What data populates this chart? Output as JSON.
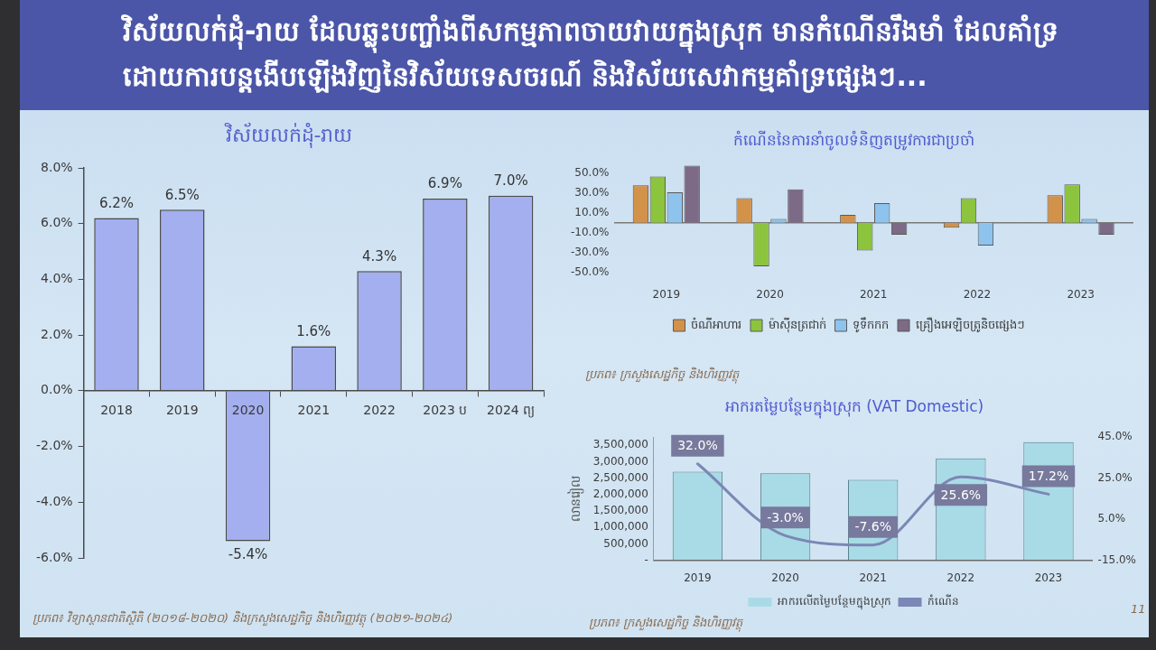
{
  "chart_data": [
    {
      "type": "other",
      "title": "វិស័យលក់ដុំ-រាយ ដែលឆ្លុះបញ្ចាំងពីសកម្មភាពចាយវាយក្នុងស្រុក មានកំណើនរឹងមាំ ដែលគាំទ្រដោយការបន្តងើបឡើងវិញនៃវិស័យទេសចរណ៍ និងវិស័យសេវាកម្មគាំទ្រផ្សេងៗ..."
    },
    {
      "type": "bar",
      "title": "វិស័យលក់ដុំ-រាយ",
      "categories": [
        "2018",
        "2019",
        "2020",
        "2021",
        "2022",
        "2023 ប",
        "2024 ព្យ"
      ],
      "values": [
        6.2,
        6.5,
        -5.4,
        1.6,
        4.3,
        6.9,
        7.0
      ],
      "value_labels": [
        "6.2%",
        "6.5%",
        "-5.4%",
        "1.6%",
        "4.3%",
        "6.9%",
        "7.0%"
      ],
      "color": "#a3afef",
      "ylim": [
        -6,
        8
      ],
      "yticks": [
        {
          "value": -6,
          "label": "-6.0%"
        },
        {
          "value": -4,
          "label": "-4.0%"
        },
        {
          "value": -2,
          "label": "-2.0%"
        },
        {
          "value": 0,
          "label": "0.0%"
        },
        {
          "value": 2,
          "label": "2.0%"
        },
        {
          "value": 4,
          "label": "4.0%"
        },
        {
          "value": 6,
          "label": "6.0%"
        },
        {
          "value": 8,
          "label": "8.0%"
        }
      ],
      "annotations": [
        "ប្រភព៖ វិទ្យាស្ថានជាតិស្ថិតិ (២០១៨-២០២០) និងក្រសួងសេដ្ឋកិច្ច និងហិរញ្ញវត្ថុ (២០២១-២០២៤)"
      ]
    },
    {
      "type": "bar",
      "title": "កំណើននៃការនាំចូលទំនិញតម្រូវការជាប្រចាំ",
      "categories": [
        "2019",
        "2020",
        "2021",
        "2022",
        "2023"
      ],
      "series": [
        {
          "name": "ចំណីអាហារ",
          "color": "#d3924a",
          "values": [
            38,
            25,
            8,
            -5,
            28
          ]
        },
        {
          "name": "ម៉ាស៊ីនត្រជាក់",
          "color": "#8cc43e",
          "values": [
            47,
            -44,
            -28,
            25,
            39
          ]
        },
        {
          "name": "ទូទឹកកក",
          "color": "#8ec3ee",
          "values": [
            31,
            4,
            20,
            -23,
            4
          ]
        },
        {
          "name": "គ្រឿងអេឡិចត្រូនិចផ្សេងៗ",
          "color": "#7d6a86",
          "values": [
            58,
            34,
            -12,
            null,
            -12
          ]
        }
      ],
      "ylim": [
        -50,
        60
      ],
      "yticks": [
        {
          "value": -50,
          "label": "-50.0%"
        },
        {
          "value": -30,
          "label": "-30.0%"
        },
        {
          "value": -10,
          "label": "-10.0%"
        },
        {
          "value": 10,
          "label": "10.0%"
        },
        {
          "value": 30,
          "label": "30.0%"
        },
        {
          "value": 50,
          "label": "50.0%"
        }
      ],
      "legend": "bottom",
      "annotations": [
        "ប្រភព៖ ក្រសួងសេដ្ឋកិច្ច និងហិរញ្ញវត្ថុ"
      ]
    },
    {
      "type": "bar",
      "title": "អាករតម្លៃបន្ថែមក្នុងស្រុក (VAT Domestic)",
      "categories": [
        "2019",
        "2020",
        "2021",
        "2022",
        "2023"
      ],
      "series": [
        {
          "name": "អាករលើតម្លៃបន្ថែមក្នុងស្រុក",
          "type": "bar",
          "color": "#a9dbe6",
          "values": [
            2700000,
            2650000,
            2450000,
            3100000,
            3600000
          ]
        },
        {
          "name": "កំណើន",
          "type": "line",
          "axis": "y2",
          "color": "#7b87b5",
          "values": [
            32.0,
            -3.0,
            -7.6,
            25.6,
            17.2
          ],
          "value_labels": [
            "32.0%",
            "-3.0%",
            "-7.6%",
            "25.6%",
            "17.2%"
          ]
        }
      ],
      "ylabel": "លានរៀល",
      "ylim": [
        0,
        3750000
      ],
      "yticks": [
        {
          "value": 0,
          "label": "-"
        },
        {
          "value": 500000,
          "label": "500,000"
        },
        {
          "value": 1000000,
          "label": "1,000,000"
        },
        {
          "value": 1500000,
          "label": "1,500,000"
        },
        {
          "value": 2000000,
          "label": "2,000,000"
        },
        {
          "value": 2500000,
          "label": "2,500,000"
        },
        {
          "value": 3000000,
          "label": "3,000,000"
        },
        {
          "value": 3500000,
          "label": "3,500,000"
        }
      ],
      "y2lim": [
        -15,
        45
      ],
      "y2ticks": [
        {
          "value": -15,
          "label": "-15.0%"
        },
        {
          "value": 5,
          "label": "5.0%"
        },
        {
          "value": 25,
          "label": "25.0%"
        },
        {
          "value": 45,
          "label": "45.0%"
        }
      ],
      "legend": "bottom",
      "annotations": [
        "ប្រភព៖ ក្រសួងសេដ្ឋកិច្ច និងហិរញ្ញវត្ថុ",
        "11"
      ]
    }
  ]
}
